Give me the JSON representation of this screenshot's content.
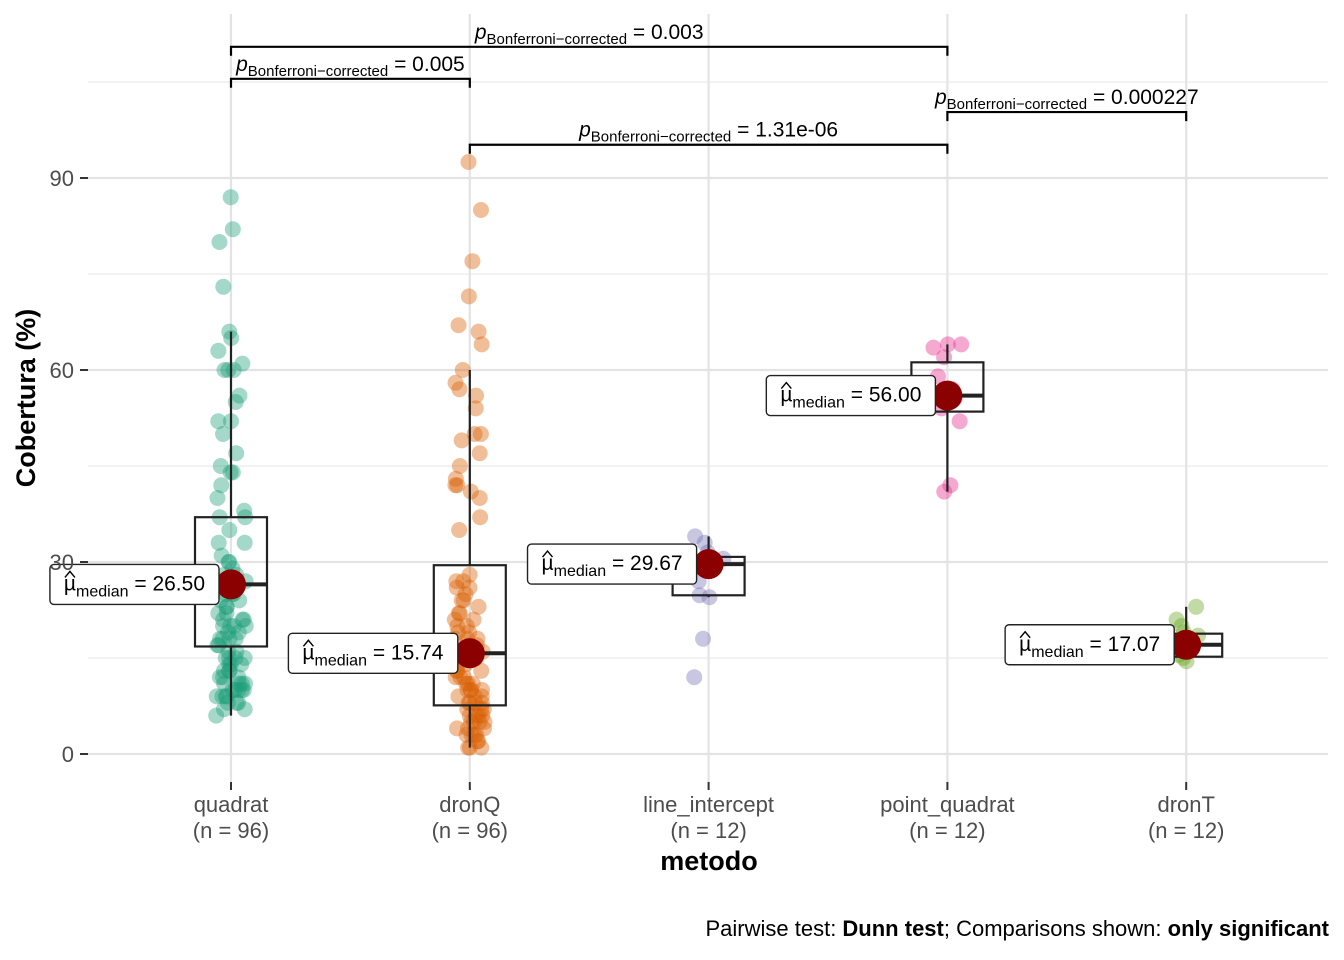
{
  "chart_data": {
    "type": "box-violin-scatter",
    "xlabel": "metodo",
    "ylabel": "Cobertura (%)",
    "ylim": [
      -4.5,
      115
    ],
    "yticks": [
      0,
      30,
      60,
      90
    ],
    "grid": true,
    "categories": [
      {
        "name": "quadrat",
        "n_label": "(n = 96)",
        "color": "#1b9e77",
        "median_label": "26.50",
        "mean_point": 26.5,
        "box": {
          "q1": 16.8,
          "median": 26.5,
          "q3": 37.0,
          "whisker_low": 6.0,
          "whisker_high": 66.0
        },
        "points": [
          87,
          82,
          80,
          73,
          66,
          65,
          63,
          61,
          60,
          60,
          60,
          56,
          55,
          52,
          52,
          50,
          47,
          45,
          44,
          44,
          42,
          40,
          38,
          37,
          37,
          35,
          33,
          31,
          30,
          29,
          28,
          28,
          27,
          27,
          26,
          26,
          25,
          25,
          24,
          24,
          23,
          22,
          22,
          21,
          21,
          21,
          20,
          20,
          20,
          19,
          19,
          18,
          18,
          18,
          18,
          17,
          17,
          16,
          16,
          15,
          15,
          15,
          15,
          14,
          14,
          14,
          13,
          13,
          13,
          12,
          12,
          12,
          11,
          11,
          11,
          11,
          10,
          10,
          10,
          10,
          10,
          9,
          9,
          9,
          9,
          8,
          8,
          8,
          7,
          7,
          6,
          23,
          25,
          30,
          33,
          20
        ]
      },
      {
        "name": "dronQ",
        "n_label": "(n = 96)",
        "color": "#d95f02",
        "median_label": "15.74",
        "mean_point": 15.74,
        "box": {
          "q1": 7.6,
          "median": 15.74,
          "q3": 29.5,
          "whisker_low": 1.0,
          "whisker_high": 60.0
        },
        "points": [
          92.5,
          85,
          77,
          71.5,
          67,
          66,
          64,
          60,
          58,
          57,
          56,
          54,
          50,
          50,
          49,
          47,
          45,
          43,
          42,
          42,
          41,
          40,
          37,
          35,
          28,
          27,
          27,
          26,
          26,
          25,
          24,
          24,
          23,
          22,
          22,
          21,
          21,
          20,
          20,
          19,
          19,
          18,
          18,
          18,
          17,
          17,
          16,
          16,
          15,
          15,
          15,
          14,
          14,
          13,
          13,
          13,
          12,
          12,
          12,
          11,
          11,
          11,
          10,
          10,
          10,
          10,
          9,
          9,
          9,
          8,
          8,
          8,
          8,
          7,
          7,
          7,
          6,
          6,
          6,
          6,
          5,
          5,
          5,
          5,
          4,
          4,
          4,
          3,
          3,
          3,
          2,
          2,
          1,
          1,
          1,
          3
        ]
      },
      {
        "name": "line_intercept",
        "n_label": "(n = 12)",
        "color": "#7570b3",
        "median_label": "29.67",
        "mean_point": 29.67,
        "box": {
          "q1": 24.8,
          "median": 29.67,
          "q3": 30.8,
          "whisker_low": 24.5,
          "whisker_high": 34.0
        },
        "points": [
          34,
          33,
          31.5,
          30.5,
          30,
          29.7,
          29,
          27,
          24.8,
          24.5,
          18,
          12
        ]
      },
      {
        "name": "point_quadrat",
        "n_label": "(n = 12)",
        "color": "#e7298a",
        "median_label": "56.00",
        "mean_point": 56.0,
        "box": {
          "q1": 53.5,
          "median": 56.0,
          "q3": 61.2,
          "whisker_low": 41.0,
          "whisker_high": 64.0
        },
        "points": [
          64,
          64,
          63.5,
          62,
          59,
          57,
          56,
          55.5,
          54,
          52,
          42,
          41
        ]
      },
      {
        "name": "dronT",
        "n_label": "(n = 12)",
        "color": "#66a61e",
        "median_label": "17.07",
        "mean_point": 17.07,
        "box": {
          "q1": 15.2,
          "median": 17.07,
          "q3": 18.8,
          "whisker_low": 14.8,
          "whisker_high": 23.0
        },
        "points": [
          23,
          21,
          20,
          19,
          18.5,
          17.5,
          17,
          16.5,
          16,
          15.5,
          15,
          14.5
        ]
      }
    ],
    "comparisons": [
      {
        "from": 0,
        "to": 3,
        "p": "0.003",
        "y": 110.5
      },
      {
        "from": 0,
        "to": 1,
        "p": "0.005",
        "y": 105.5
      },
      {
        "from": 3,
        "to": 4,
        "p": "0.000227",
        "y": 100.3
      },
      {
        "from": 1,
        "to": 3,
        "p": "1.31e-06",
        "y": 95.2
      }
    ],
    "sig_label_prefix": "p",
    "sig_label_subscript": "Bonferroni−corrected",
    "sig_label_eq": " = ",
    "median_symbol": "µ",
    "median_subscript": "median",
    "median_eq": " = ",
    "caption": {
      "p1": "Pairwise test: ",
      "b1": "Dunn test",
      "p2": "; Comparisons shown: ",
      "b2": "only significant"
    }
  }
}
